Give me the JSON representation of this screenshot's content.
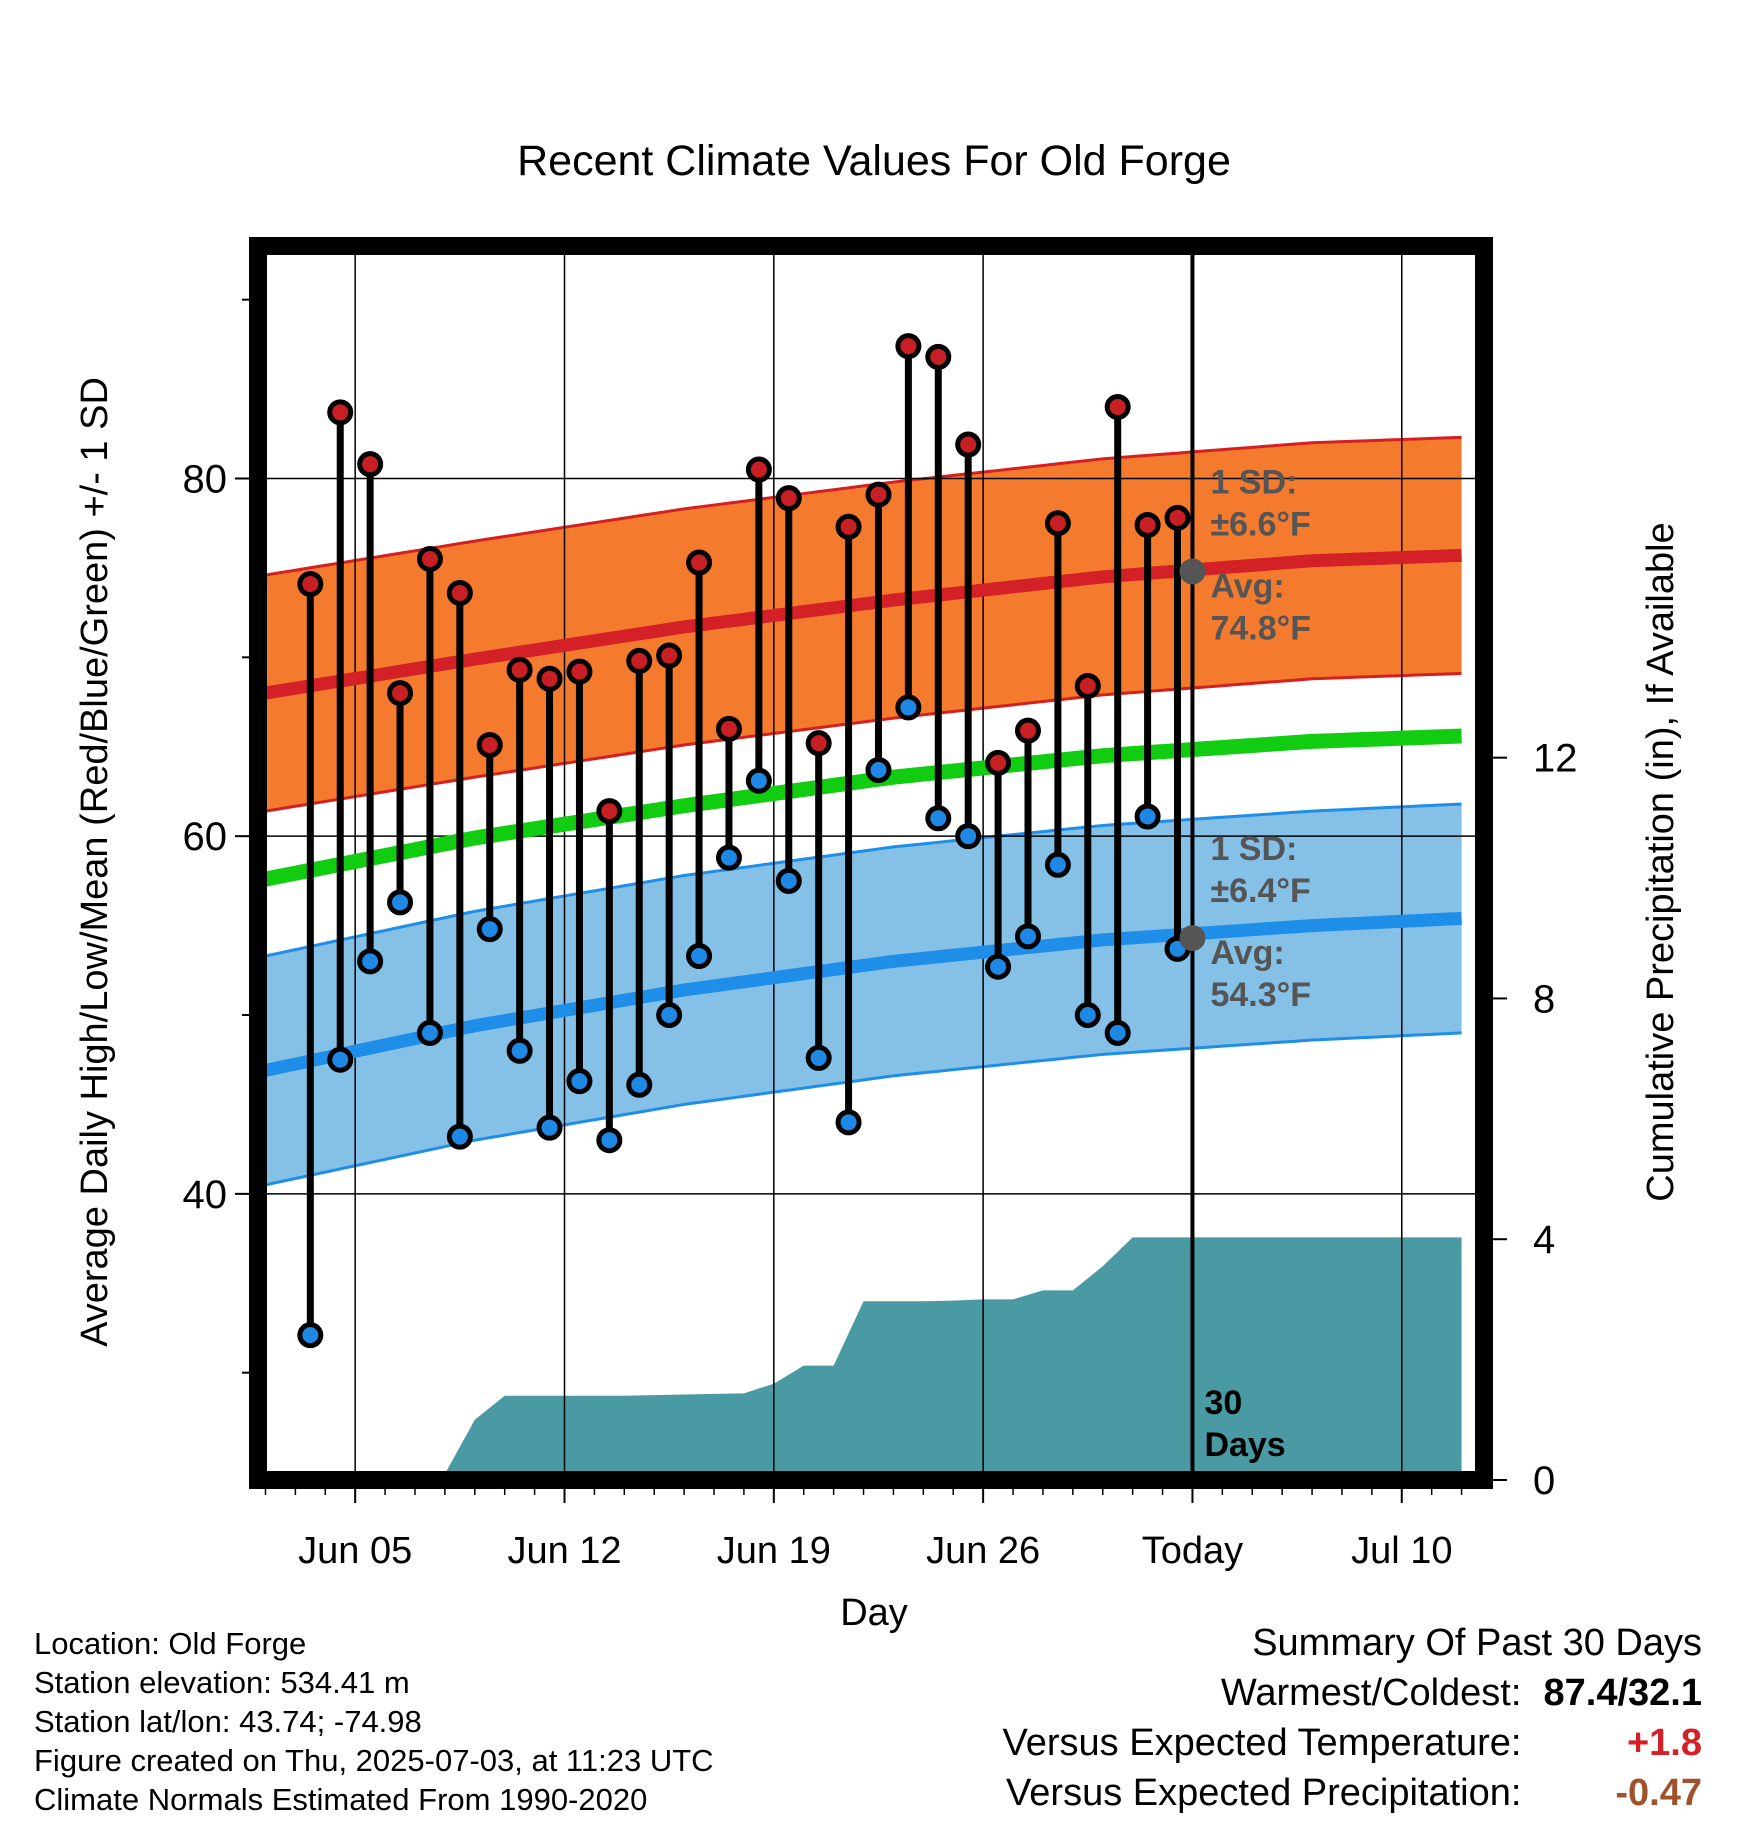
{
  "chart_data": {
    "type": "line",
    "title": "Recent Climate Values For Old Forge",
    "xlabel": "Day",
    "ylabel": "Average Daily High/Low/Mean (Red/Blue/Green) +/- 1 SD",
    "y2label": "Cumulative Precipitation (in), If Available",
    "x_tick_labels": [
      "Jun 05",
      "Jun 12",
      "Jun 19",
      "Jun 26",
      "Today",
      "Jul 10"
    ],
    "x_tick_dates": [
      "2025-06-05",
      "2025-06-12",
      "2025-06-19",
      "2025-06-26",
      "2025-07-03",
      "2025-07-10"
    ],
    "xlim": [
      "2025-06-01 18:00",
      "2025-07-12 18:00"
    ],
    "ylim": [
      24,
      93
    ],
    "y_ticks": [
      40,
      60,
      80
    ],
    "y2lim": [
      0,
      20.5
    ],
    "y2_ticks": [
      0,
      4,
      8,
      12
    ],
    "grid": true,
    "dates": [
      "2025-06-03",
      "2025-06-04",
      "2025-06-05",
      "2025-06-06",
      "2025-06-07",
      "2025-06-08",
      "2025-06-09",
      "2025-06-10",
      "2025-06-11",
      "2025-06-12",
      "2025-06-13",
      "2025-06-14",
      "2025-06-15",
      "2025-06-16",
      "2025-06-17",
      "2025-06-18",
      "2025-06-19",
      "2025-06-20",
      "2025-06-21",
      "2025-06-22",
      "2025-06-23",
      "2025-06-24",
      "2025-06-25",
      "2025-06-26",
      "2025-06-27",
      "2025-06-28",
      "2025-06-29",
      "2025-06-30",
      "2025-07-01",
      "2025-07-02"
    ],
    "daily_high": [
      74.1,
      83.7,
      80.8,
      68.0,
      75.5,
      73.6,
      65.1,
      69.3,
      68.8,
      69.2,
      61.4,
      69.8,
      70.1,
      75.3,
      66.0,
      80.5,
      78.9,
      65.2,
      77.3,
      79.1,
      87.4,
      86.8,
      81.9,
      64.1,
      65.9,
      77.5,
      68.4,
      84.0,
      77.4,
      77.8
    ],
    "daily_low": [
      32.1,
      47.5,
      53.0,
      56.3,
      49.0,
      43.2,
      54.8,
      48.0,
      43.7,
      46.3,
      43.0,
      46.1,
      50.0,
      53.3,
      58.8,
      63.1,
      57.5,
      47.6,
      44.0,
      63.7,
      67.2,
      61.0,
      60.0,
      52.7,
      54.4,
      58.4,
      50.0,
      49.0,
      61.1,
      53.7
    ],
    "normal_dates": [
      "2025-06-02",
      "2025-06-09",
      "2025-06-16",
      "2025-06-23",
      "2025-06-30",
      "2025-07-07",
      "2025-07-12"
    ],
    "normal_high": [
      68.0,
      69.9,
      71.7,
      73.2,
      74.5,
      75.4,
      75.7
    ],
    "normal_high_sd": 6.6,
    "normal_mean": [
      57.6,
      59.9,
      61.7,
      63.3,
      64.5,
      65.3,
      65.6
    ],
    "normal_low": [
      46.9,
      49.4,
      51.4,
      53.0,
      54.2,
      55.0,
      55.4
    ],
    "normal_low_sd": 6.4,
    "today_annotations": {
      "high_sd": "1 SD:",
      "high_sd_val": "±6.6°F",
      "high_avg_label": "Avg:",
      "high_avg": "74.8°F",
      "low_sd": "1 SD:",
      "low_sd_val": "±6.4°F",
      "low_avg_label": "Avg:",
      "low_avg": "54.3°F",
      "high_avg_value": 74.8,
      "low_avg_value": 54.3,
      "window_label_1": "30",
      "window_label_2": "Days"
    },
    "precip_dates": [
      "2025-06-02",
      "2025-06-03",
      "2025-06-04",
      "2025-06-05",
      "2025-06-06",
      "2025-06-07",
      "2025-06-08",
      "2025-06-09",
      "2025-06-10",
      "2025-06-11",
      "2025-06-12",
      "2025-06-13",
      "2025-06-14",
      "2025-06-15",
      "2025-06-16",
      "2025-06-17",
      "2025-06-18",
      "2025-06-19",
      "2025-06-20",
      "2025-06-21",
      "2025-06-22",
      "2025-06-23",
      "2025-06-24",
      "2025-06-25",
      "2025-06-26",
      "2025-06-27",
      "2025-06-28",
      "2025-06-29",
      "2025-06-30",
      "2025-07-01",
      "2025-07-02",
      "2025-07-03",
      "2025-07-12"
    ],
    "cumulative_precip": [
      0,
      0,
      0,
      0,
      0.1,
      0.1,
      0.1,
      1.0,
      1.4,
      1.4,
      1.4,
      1.4,
      1.4,
      1.41,
      1.42,
      1.43,
      1.44,
      1.6,
      1.9,
      1.9,
      2.97,
      2.97,
      2.97,
      2.98,
      3.0,
      3.0,
      3.15,
      3.15,
      3.55,
      4.03,
      4.03,
      4.03,
      4.03
    ],
    "colors": {
      "high_band": "#f47a2e",
      "high_band_edge": "#d42020",
      "high_line": "#d42027",
      "low_band": "#85c0e6",
      "low_band_edge": "#1e8ee8",
      "low_line": "#1e8ee8",
      "mean_line": "#11cc11",
      "precip": "#4a9aa3",
      "high_marker": "#c71f24",
      "low_marker": "#1e88e5",
      "avg_marker": "#555555"
    }
  },
  "info": {
    "location": "Location: Old Forge",
    "elevation": "Station elevation: 534.41 m",
    "latlon": "Station lat/lon: 43.74; -74.98",
    "created": "Figure created on Thu, 2025-07-03, at 11:23 UTC",
    "normals": "Climate Normals Estimated From 1990-2020"
  },
  "summary": {
    "title": "Summary Of Past 30 Days",
    "warm_cold_label": "Warmest/Coldest:",
    "warm_cold_value": "87.4/32.1",
    "temp_label": "Versus Expected Temperature:",
    "temp_value": "+1.8",
    "temp_color": "#d42027",
    "precip_label": "Versus Expected Precipitation:",
    "precip_value": "-0.47",
    "precip_color": "#a0522d"
  }
}
